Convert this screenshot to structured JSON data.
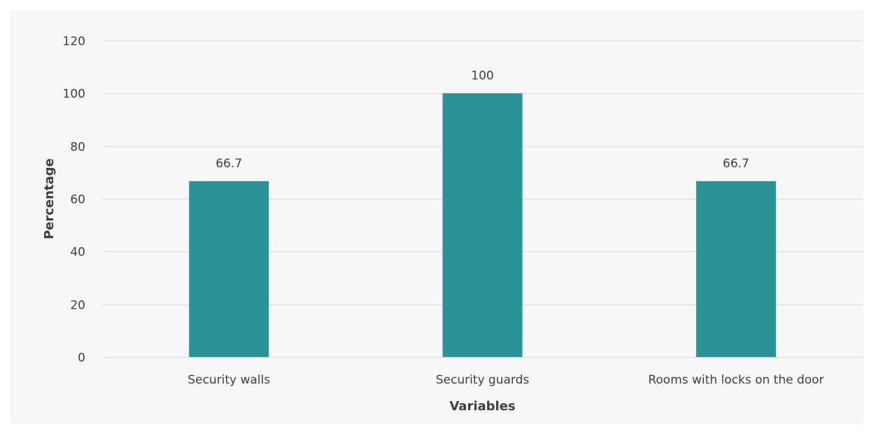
{
  "chart_data": {
    "type": "bar",
    "categories": [
      "Security walls",
      "Security guards",
      "Rooms with locks on the door"
    ],
    "values": [
      66.7,
      100,
      66.7
    ],
    "data_labels": [
      "66.7",
      "100",
      "66.7"
    ],
    "xlabel": "Variables",
    "ylabel": "Percentage",
    "ylim": [
      0,
      120
    ],
    "yticks": [
      0,
      20,
      40,
      60,
      80,
      100,
      120
    ],
    "grid": true,
    "legend": "none",
    "bar_color": "#2a9397",
    "background_color": "#f7f7f7",
    "gridline_color": "#d9d9d9"
  }
}
